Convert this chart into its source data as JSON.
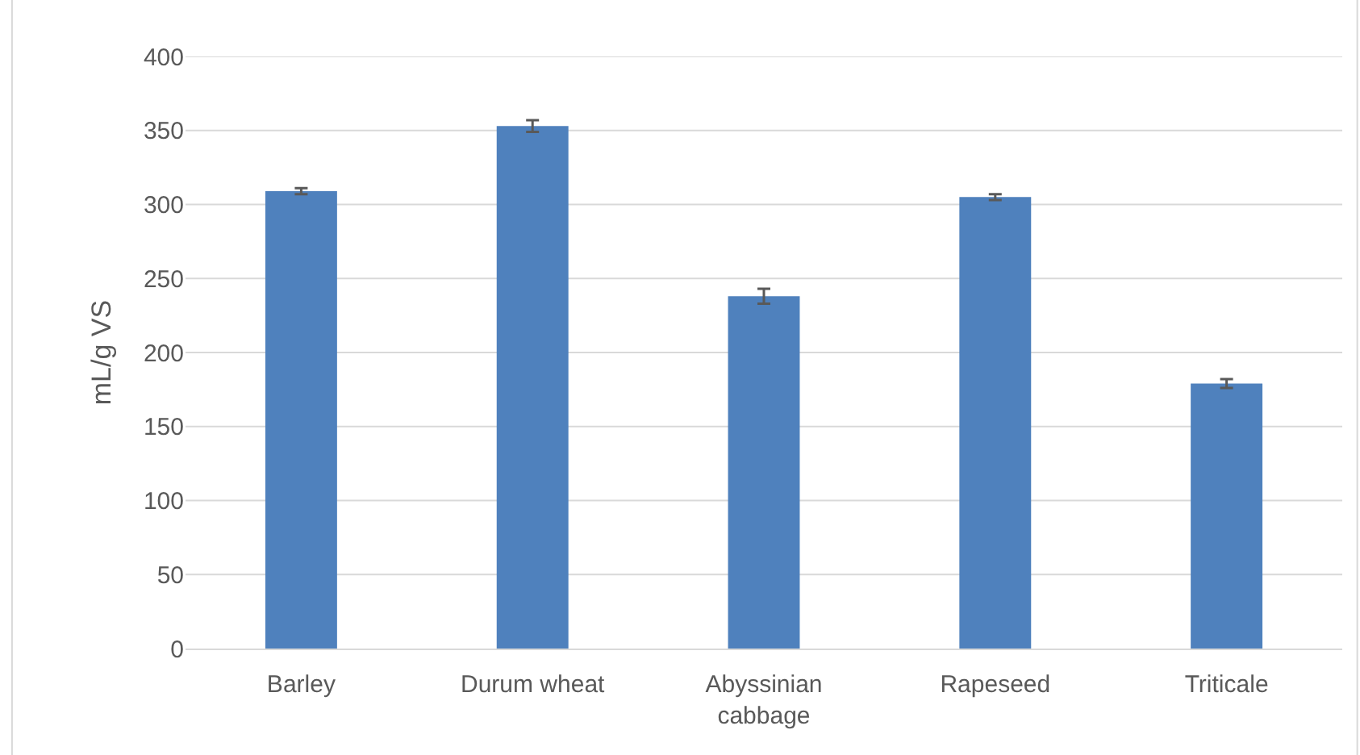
{
  "chart_data": {
    "type": "bar",
    "ylabel": "mL/g VS",
    "categories": [
      "Barley",
      "Durum wheat",
      "Abyssinian cabbage",
      "Rapeseed",
      "Triticale"
    ],
    "values": [
      309,
      353,
      238,
      305,
      179
    ],
    "errors": [
      2,
      4,
      5,
      2,
      3
    ],
    "color": "#4f81bd",
    "ylim": [
      0,
      400
    ],
    "yticks": [
      0,
      50,
      100,
      150,
      200,
      250,
      300,
      350,
      400
    ],
    "grid": "y"
  }
}
